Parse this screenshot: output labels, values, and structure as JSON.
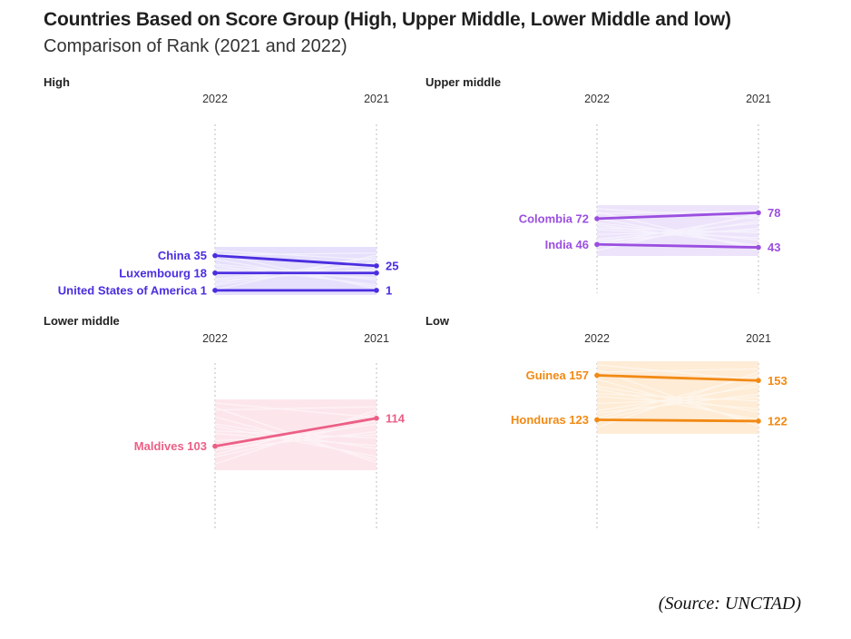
{
  "title": "Countries Based on Score Group (High, Upper Middle, Lower Middle and low)",
  "subtitle": "Comparison of Rank (2021 and 2022)",
  "source": "(Source: UNCTAD)",
  "chart_data": [
    {
      "type": "line",
      "group": "High",
      "columns": [
        "2022",
        "2021"
      ],
      "color": "#4a2ee0",
      "band_color": "#ddd6fb",
      "series": [
        {
          "name": "China",
          "rank_2022": 35,
          "rank_2021": 25,
          "label_2022": "China 35",
          "label_2021": "25"
        },
        {
          "name": "Luxembourg",
          "rank_2022": 18,
          "rank_2021": 18,
          "label_2022": "Luxembourg 18",
          "label_2021": ""
        },
        {
          "name": "United States of America",
          "rank_2022": 1,
          "rank_2021": 1,
          "label_2022": "United States of America 1",
          "label_2021": "1"
        }
      ]
    },
    {
      "type": "line",
      "group": "Upper middle",
      "columns": [
        "2022",
        "2021"
      ],
      "color": "#9b4fe0",
      "band_color": "#e7dbfa",
      "series": [
        {
          "name": "Colombia",
          "rank_2022": 72,
          "rank_2021": 78,
          "label_2022": "Colombia 72",
          "label_2021": "78"
        },
        {
          "name": "India",
          "rank_2022": 46,
          "rank_2021": 43,
          "label_2022": "India 46",
          "label_2021": "43"
        }
      ]
    },
    {
      "type": "line",
      "group": "Lower middle",
      "columns": [
        "2022",
        "2021"
      ],
      "color": "#ec5f86",
      "band_color": "#fbdde5",
      "series": [
        {
          "name": "Maldives",
          "rank_2022": 103,
          "rank_2021": 114,
          "label_2022": "Maldives 103",
          "label_2021": "114"
        }
      ]
    },
    {
      "type": "line",
      "group": "Low",
      "columns": [
        "2022",
        "2021"
      ],
      "color": "#f28a14",
      "band_color": "#fde5c8",
      "series": [
        {
          "name": "Guinea",
          "rank_2022": 157,
          "rank_2021": 153,
          "label_2022": "Guinea 157",
          "label_2021": "153"
        },
        {
          "name": "Honduras",
          "rank_2022": 123,
          "rank_2021": 122,
          "label_2022": "Honduras 123",
          "label_2021": "122"
        }
      ]
    }
  ]
}
